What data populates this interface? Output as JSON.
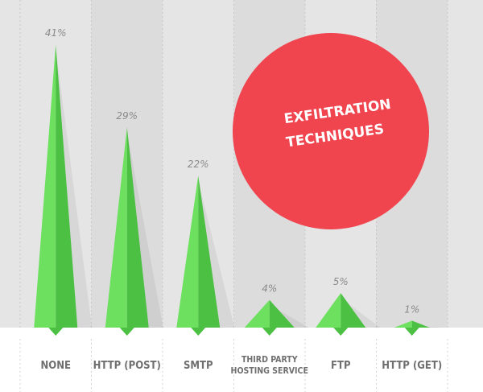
{
  "chart_data": {
    "type": "bar",
    "title_lines": [
      "EXFILTRATION",
      "TECHNIQUES"
    ],
    "categories": [
      "NONE",
      "HTTP (POST)",
      "SMTP",
      "THIRD PARTY HOSTING SERVICE",
      "FTP",
      "HTTP (GET)"
    ],
    "category_label_lines": [
      [
        "NONE"
      ],
      [
        "HTTP (POST)"
      ],
      [
        "SMTP"
      ],
      [
        "THIRD PARTY",
        "HOSTING SERVICE"
      ],
      [
        "FTP"
      ],
      [
        "HTTP (GET)"
      ]
    ],
    "values": [
      41,
      29,
      22,
      4,
      5,
      1
    ],
    "value_labels": [
      "41%",
      "29%",
      "22%",
      "4%",
      "5%",
      "1%"
    ],
    "ylim": [
      0,
      41
    ],
    "colors": {
      "bar_light": "#6ee060",
      "bar_dark": "#4bc043",
      "background": "#e5e5e5",
      "background_alt": "#dcdcdc",
      "badge": "#f0444f",
      "label": "#6f6f6f",
      "value": "#8a8a8a"
    }
  }
}
